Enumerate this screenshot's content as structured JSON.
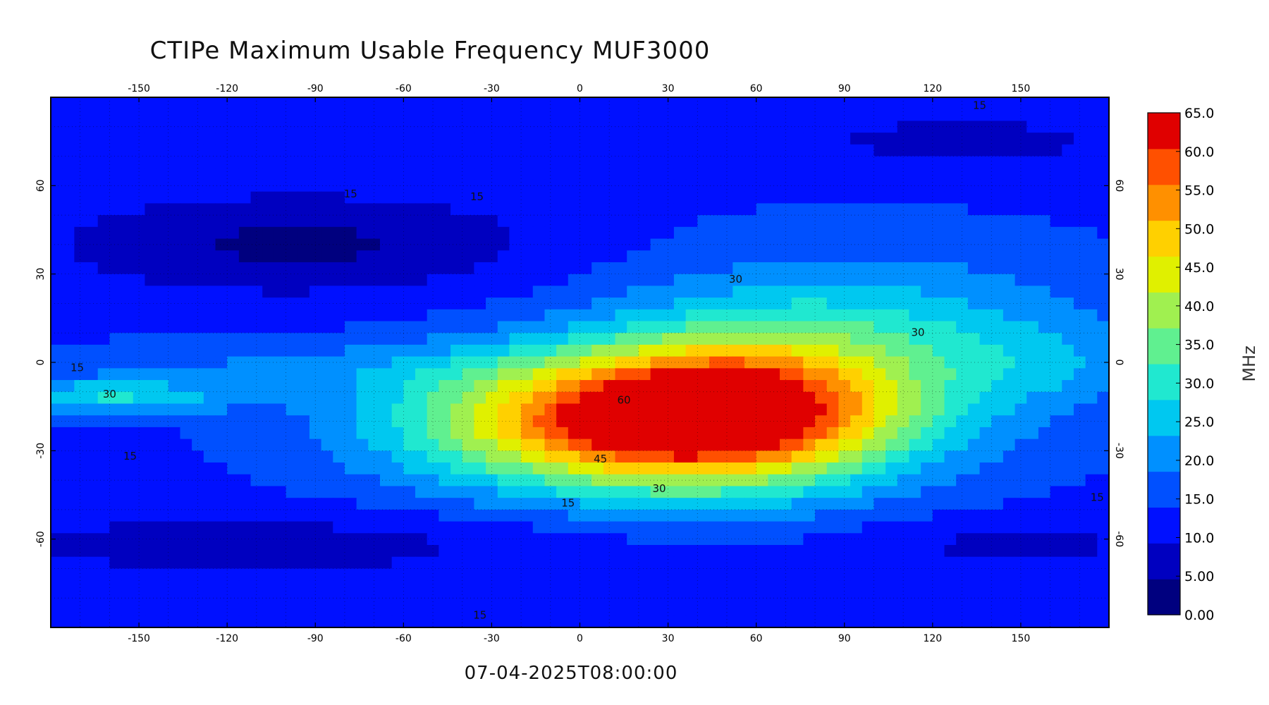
{
  "title": "CTIPe Maximum Usable Frequency MUF3000",
  "timestamp": "07-04-2025T08:00:00",
  "chart_data": {
    "type": "heatmap",
    "title": "CTIPe Maximum Usable Frequency MUF3000",
    "xlabel": "",
    "ylabel": "",
    "x_ticks": [
      -150,
      -120,
      -90,
      -60,
      -30,
      0,
      30,
      60,
      90,
      120,
      150
    ],
    "y_ticks": [
      60,
      30,
      0,
      -30,
      -60
    ],
    "xlim": [
      -180,
      180
    ],
    "ylim": [
      -90,
      90
    ],
    "grid": true,
    "colorbar": {
      "unit": "MHz",
      "ticks": [
        "65.0",
        "60.0",
        "55.0",
        "50.0",
        "45.0",
        "40.0",
        "35.0",
        "30.0",
        "25.0",
        "20.0",
        "15.0",
        "10.0",
        "5.00",
        "0.00"
      ],
      "range": [
        0,
        65
      ],
      "colors": [
        "#00007f",
        "#0000c0",
        "#0010ff",
        "#0050ff",
        "#0090ff",
        "#00c8f0",
        "#20e8d0",
        "#60f090",
        "#a0f050",
        "#e0f000",
        "#ffd000",
        "#ff9000",
        "#ff5000",
        "#e00000"
      ]
    },
    "contour_labels": [
      {
        "text": "15",
        "x": -171,
        "y": -3
      },
      {
        "text": "30",
        "x": -160,
        "y": -12
      },
      {
        "text": "15",
        "x": -153,
        "y": -33
      },
      {
        "text": "15",
        "x": -78,
        "y": 56
      },
      {
        "text": "15",
        "x": -35,
        "y": 55
      },
      {
        "text": "30",
        "x": 53,
        "y": 27
      },
      {
        "text": "30",
        "x": 115,
        "y": 9
      },
      {
        "text": "60",
        "x": 15,
        "y": -14
      },
      {
        "text": "45",
        "x": 7,
        "y": -34
      },
      {
        "text": "30",
        "x": 27,
        "y": -44
      },
      {
        "text": "15",
        "x": -4,
        "y": -49
      },
      {
        "text": "15",
        "x": 136,
        "y": 86
      },
      {
        "text": "15",
        "x": -34,
        "y": -87
      },
      {
        "text": "15",
        "x": 176,
        "y": -47
      }
    ],
    "muf_field": {
      "background": 13,
      "peaks": [
        {
          "lon": 22,
          "lat": -20,
          "value": 48,
          "sx": 55,
          "sy": 16
        },
        {
          "lon": 55,
          "lat": -15,
          "value": 20,
          "sx": 38,
          "sy": 18
        },
        {
          "lon": 95,
          "lat": 8,
          "value": 14,
          "sx": 55,
          "sy": 20
        },
        {
          "lon": -160,
          "lat": -12,
          "value": 14,
          "sx": 30,
          "sy": 4
        },
        {
          "lon": -115,
          "lat": -2,
          "value": 5,
          "sx": 70,
          "sy": 6
        },
        {
          "lon": 160,
          "lat": 0,
          "value": 5,
          "sx": 25,
          "sy": 10
        }
      ],
      "troughs": [
        {
          "lon": -115,
          "lat": 40,
          "value": 7,
          "sx": 50,
          "sy": 12
        },
        {
          "lon": -60,
          "lat": 40,
          "value": 4,
          "sx": 45,
          "sy": 12
        },
        {
          "lon": -110,
          "lat": -62,
          "value": 6,
          "sx": 80,
          "sy": 8
        },
        {
          "lon": 150,
          "lat": -62,
          "value": 5,
          "sx": 40,
          "sy": 6
        },
        {
          "lon": 130,
          "lat": 75,
          "value": 5,
          "sx": 50,
          "sy": 8
        }
      ]
    }
  }
}
